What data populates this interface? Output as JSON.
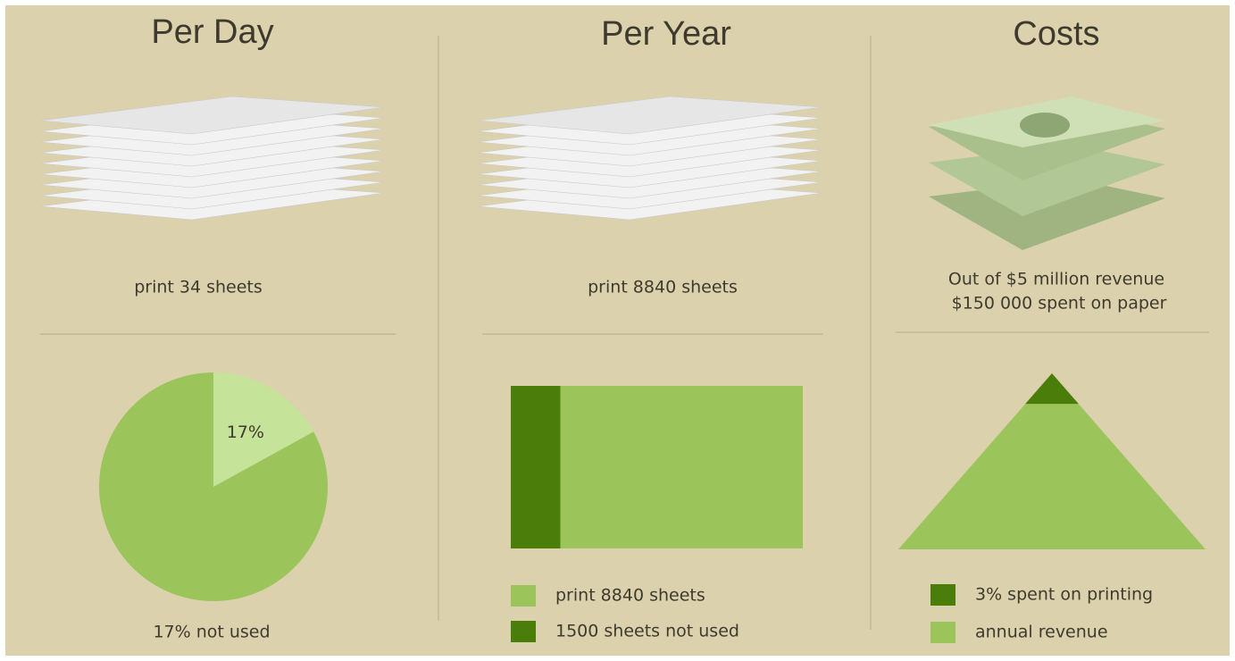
{
  "panels": [
    {
      "title": "Per Day",
      "caption": "print 34 sheets"
    },
    {
      "title": "Per Year",
      "caption": "print 8840 sheets"
    },
    {
      "title": "Costs",
      "caption_lines": [
        "Out of $5 million revenue",
        "$150 000 spent on paper"
      ]
    }
  ],
  "chart_data": [
    {
      "type": "pie",
      "values": [
        17,
        83
      ],
      "value_labels": [
        "17%",
        null
      ],
      "colors": [
        "#c6e39a",
        "#9bc45a"
      ],
      "caption": "17% not used"
    },
    {
      "type": "bar",
      "series": [
        {
          "name": "print 8840 sheets",
          "color": "#9bc45a",
          "values": [
            8840
          ]
        },
        {
          "name": "1500 sheets not used",
          "color": "#4a7d0a",
          "values": [
            1500
          ]
        }
      ]
    },
    {
      "type": "pyramid",
      "series": [
        {
          "name": "3% spent on printing",
          "color": "#4a7d0a",
          "values": [
            3
          ]
        },
        {
          "name": "annual revenue",
          "color": "#9bc45a",
          "values": [
            100
          ]
        }
      ]
    }
  ]
}
